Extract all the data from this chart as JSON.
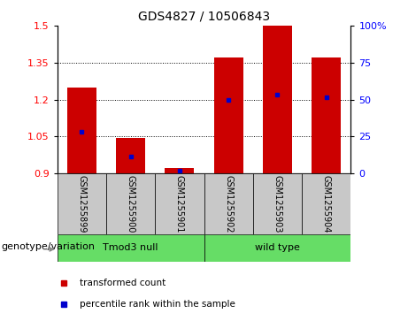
{
  "title": "GDS4827 / 10506843",
  "samples": [
    "GSM1255899",
    "GSM1255900",
    "GSM1255901",
    "GSM1255902",
    "GSM1255903",
    "GSM1255904"
  ],
  "red_values": [
    1.25,
    1.045,
    0.92,
    1.37,
    1.5,
    1.37
  ],
  "blue_values": [
    1.07,
    0.97,
    0.91,
    1.2,
    1.22,
    1.21
  ],
  "ylim_left": [
    0.9,
    1.5
  ],
  "ylim_right": [
    0,
    100
  ],
  "yticks_left": [
    0.9,
    1.05,
    1.2,
    1.35,
    1.5
  ],
  "yticks_right": [
    0,
    25,
    50,
    75,
    100
  ],
  "ytick_labels_right": [
    "0",
    "25",
    "50",
    "75",
    "100%"
  ],
  "bar_bottom": 0.9,
  "bar_width": 0.6,
  "group1_label": "Tmod3 null",
  "group2_label": "wild type",
  "group1_indices": [
    0,
    1,
    2
  ],
  "group2_indices": [
    3,
    4,
    5
  ],
  "group_color": "#66DD66",
  "genotype_label": "genotype/variation",
  "legend_red": "transformed count",
  "legend_blue": "percentile rank within the sample",
  "bar_color_red": "#CC0000",
  "bar_color_blue": "#0000CC",
  "background_xtick": "#C8C8C8",
  "title_fontsize": 10,
  "tick_fontsize": 8,
  "sample_fontsize": 7,
  "group_fontsize": 8,
  "legend_fontsize": 7.5,
  "genotype_fontsize": 8
}
